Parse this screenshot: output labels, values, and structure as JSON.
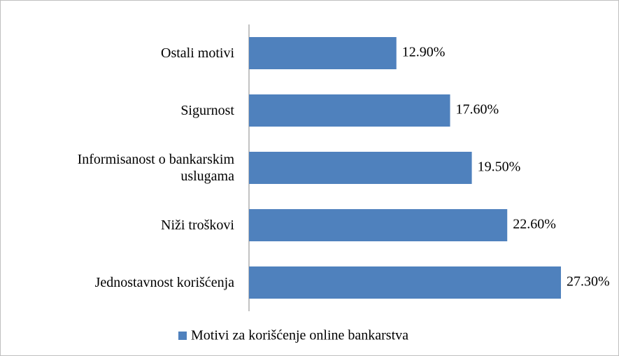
{
  "chart_data": {
    "type": "hbar",
    "categories": [
      "Ostali motivi",
      "Sigurnost",
      "Informisanost o bankarskim uslugama",
      "Niži troškovi",
      "Jednostavnost korišćenja"
    ],
    "series": [
      {
        "name": "Motivi za korišćenje online bankarstva",
        "color": "#4f81bd",
        "values": [
          12.9,
          17.6,
          19.5,
          22.6,
          27.3
        ],
        "value_labels": [
          "12.90%",
          "17.60%",
          "19.50%",
          "22.60%",
          "27.30%"
        ]
      }
    ],
    "legend": "bottom"
  }
}
